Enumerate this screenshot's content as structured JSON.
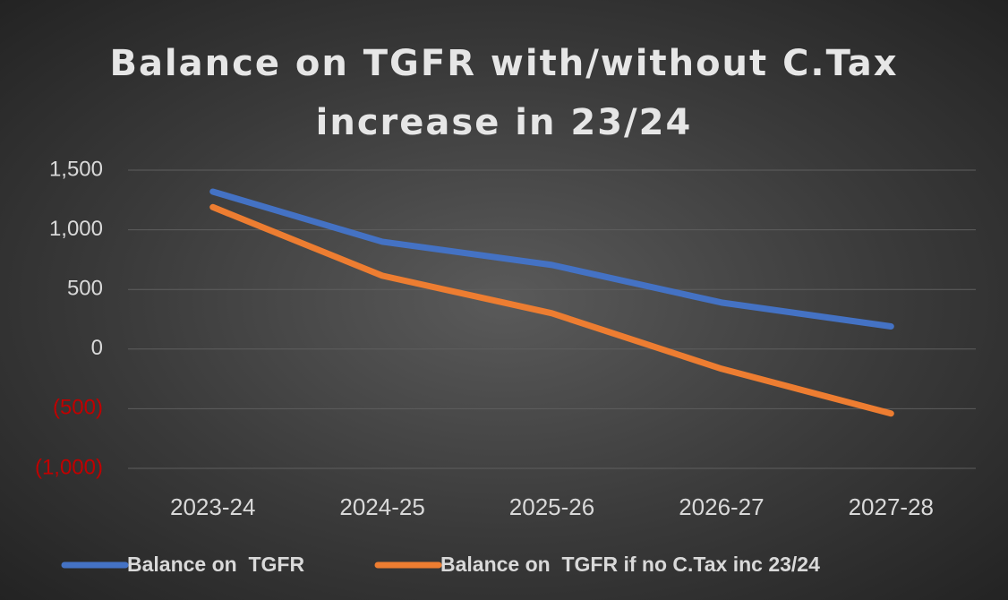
{
  "chart_data": {
    "type": "line",
    "title": "Balance on TGFR with/without C.Tax increase in 23/24",
    "categories": [
      "2023-24",
      "2024-25",
      "2025-26",
      "2026-27",
      "2027-28"
    ],
    "series": [
      {
        "name": "Balance on  TGFR",
        "color": "#4472c4",
        "values": [
          1320,
          900,
          705,
          390,
          190
        ]
      },
      {
        "name": "Balance on  TGFR if no C.Tax inc 23/24",
        "color": "#ed7d31",
        "values": [
          1190,
          615,
          300,
          -165,
          -540
        ]
      }
    ],
    "ylim": [
      -1000,
      1500
    ],
    "yticks": [
      {
        "value": 1500,
        "label": "1,500"
      },
      {
        "value": 1000,
        "label": "1,000"
      },
      500,
      0,
      {
        "value": -500,
        "label": "(500)"
      },
      {
        "value": -1000,
        "label": "(1,000)"
      }
    ],
    "grid": true,
    "legend": "bottom"
  }
}
